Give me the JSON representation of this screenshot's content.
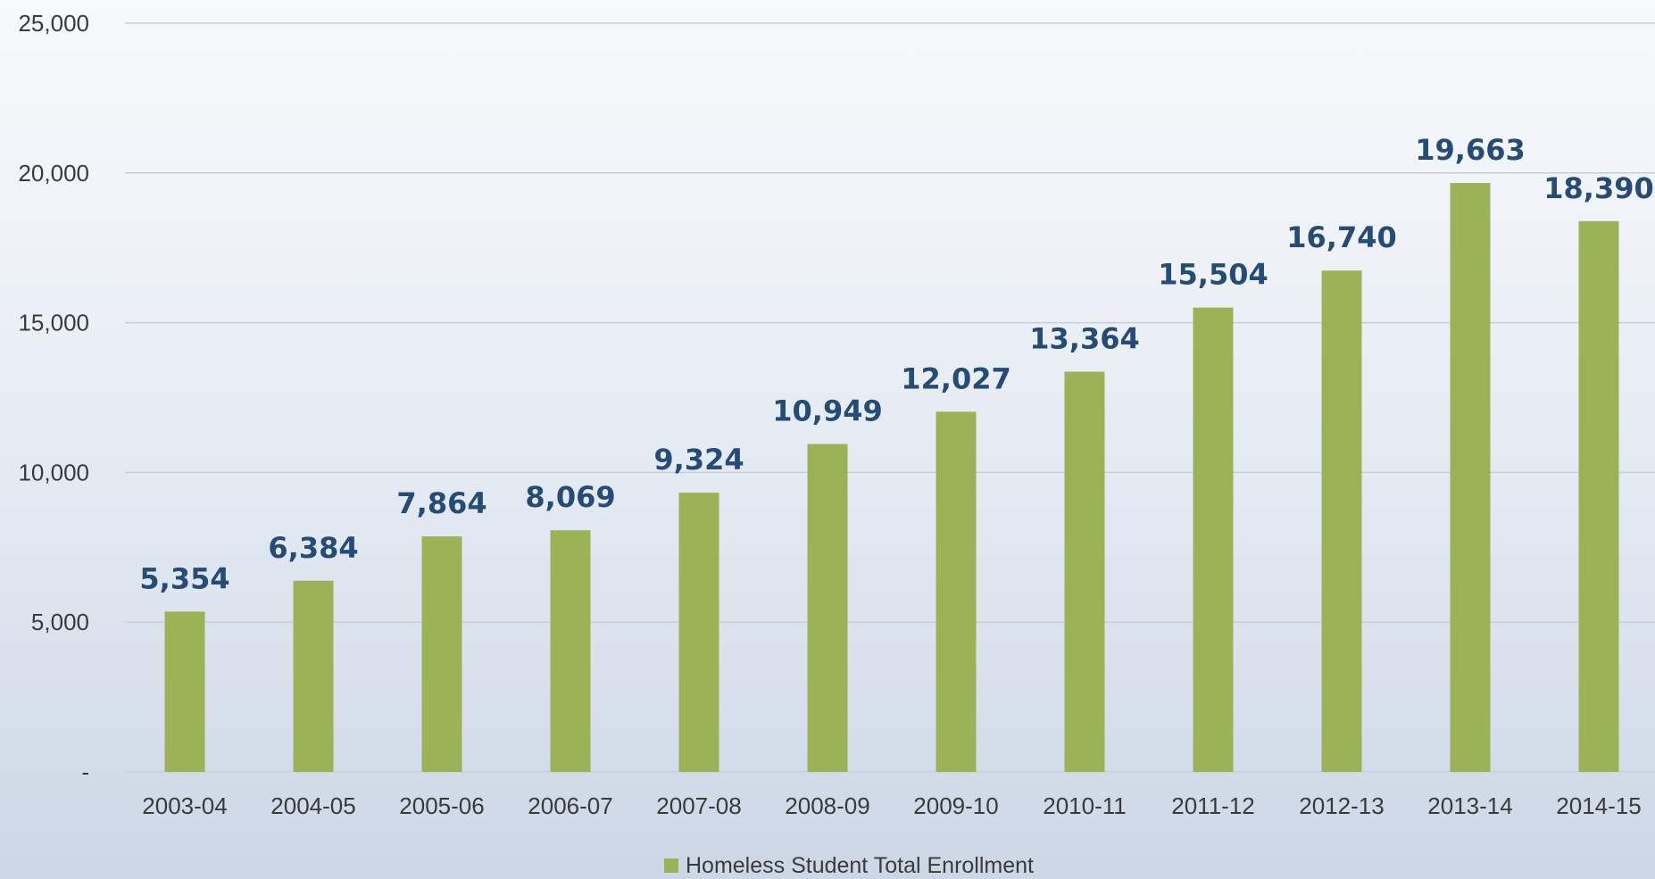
{
  "chart_data": {
    "type": "bar",
    "title": "",
    "xlabel": "",
    "ylabel": "",
    "categories": [
      "2003-04",
      "2004-05",
      "2005-06",
      "2006-07",
      "2007-08",
      "2008-09",
      "2009-10",
      "2010-11",
      "2011-12",
      "2012-13",
      "2013-14",
      "2014-15"
    ],
    "series": [
      {
        "name": "Homeless Student Total Enrollment",
        "values": [
          5354,
          6384,
          7864,
          8069,
          9324,
          10949,
          12027,
          13364,
          15504,
          16740,
          19663,
          18390
        ],
        "value_labels": [
          "5,354",
          "6,384",
          "7,864",
          "8,069",
          "9,324",
          "10,949",
          "12,027",
          "13,364",
          "15,504",
          "16,740",
          "19,663",
          "18,390"
        ]
      }
    ],
    "ylim": [
      0,
      25000
    ],
    "yticks": [
      0,
      5000,
      10000,
      15000,
      20000,
      25000
    ],
    "ytick_labels": [
      "-",
      "5,000",
      "10,000",
      "15,000",
      "20,000",
      "25,000"
    ],
    "grid": true,
    "legend_position": "bottom",
    "colors": {
      "bar": "#9bb356",
      "data_label": "#254b77",
      "gridline": "#c7ced8",
      "tick_text": "#3a3a3a"
    }
  }
}
